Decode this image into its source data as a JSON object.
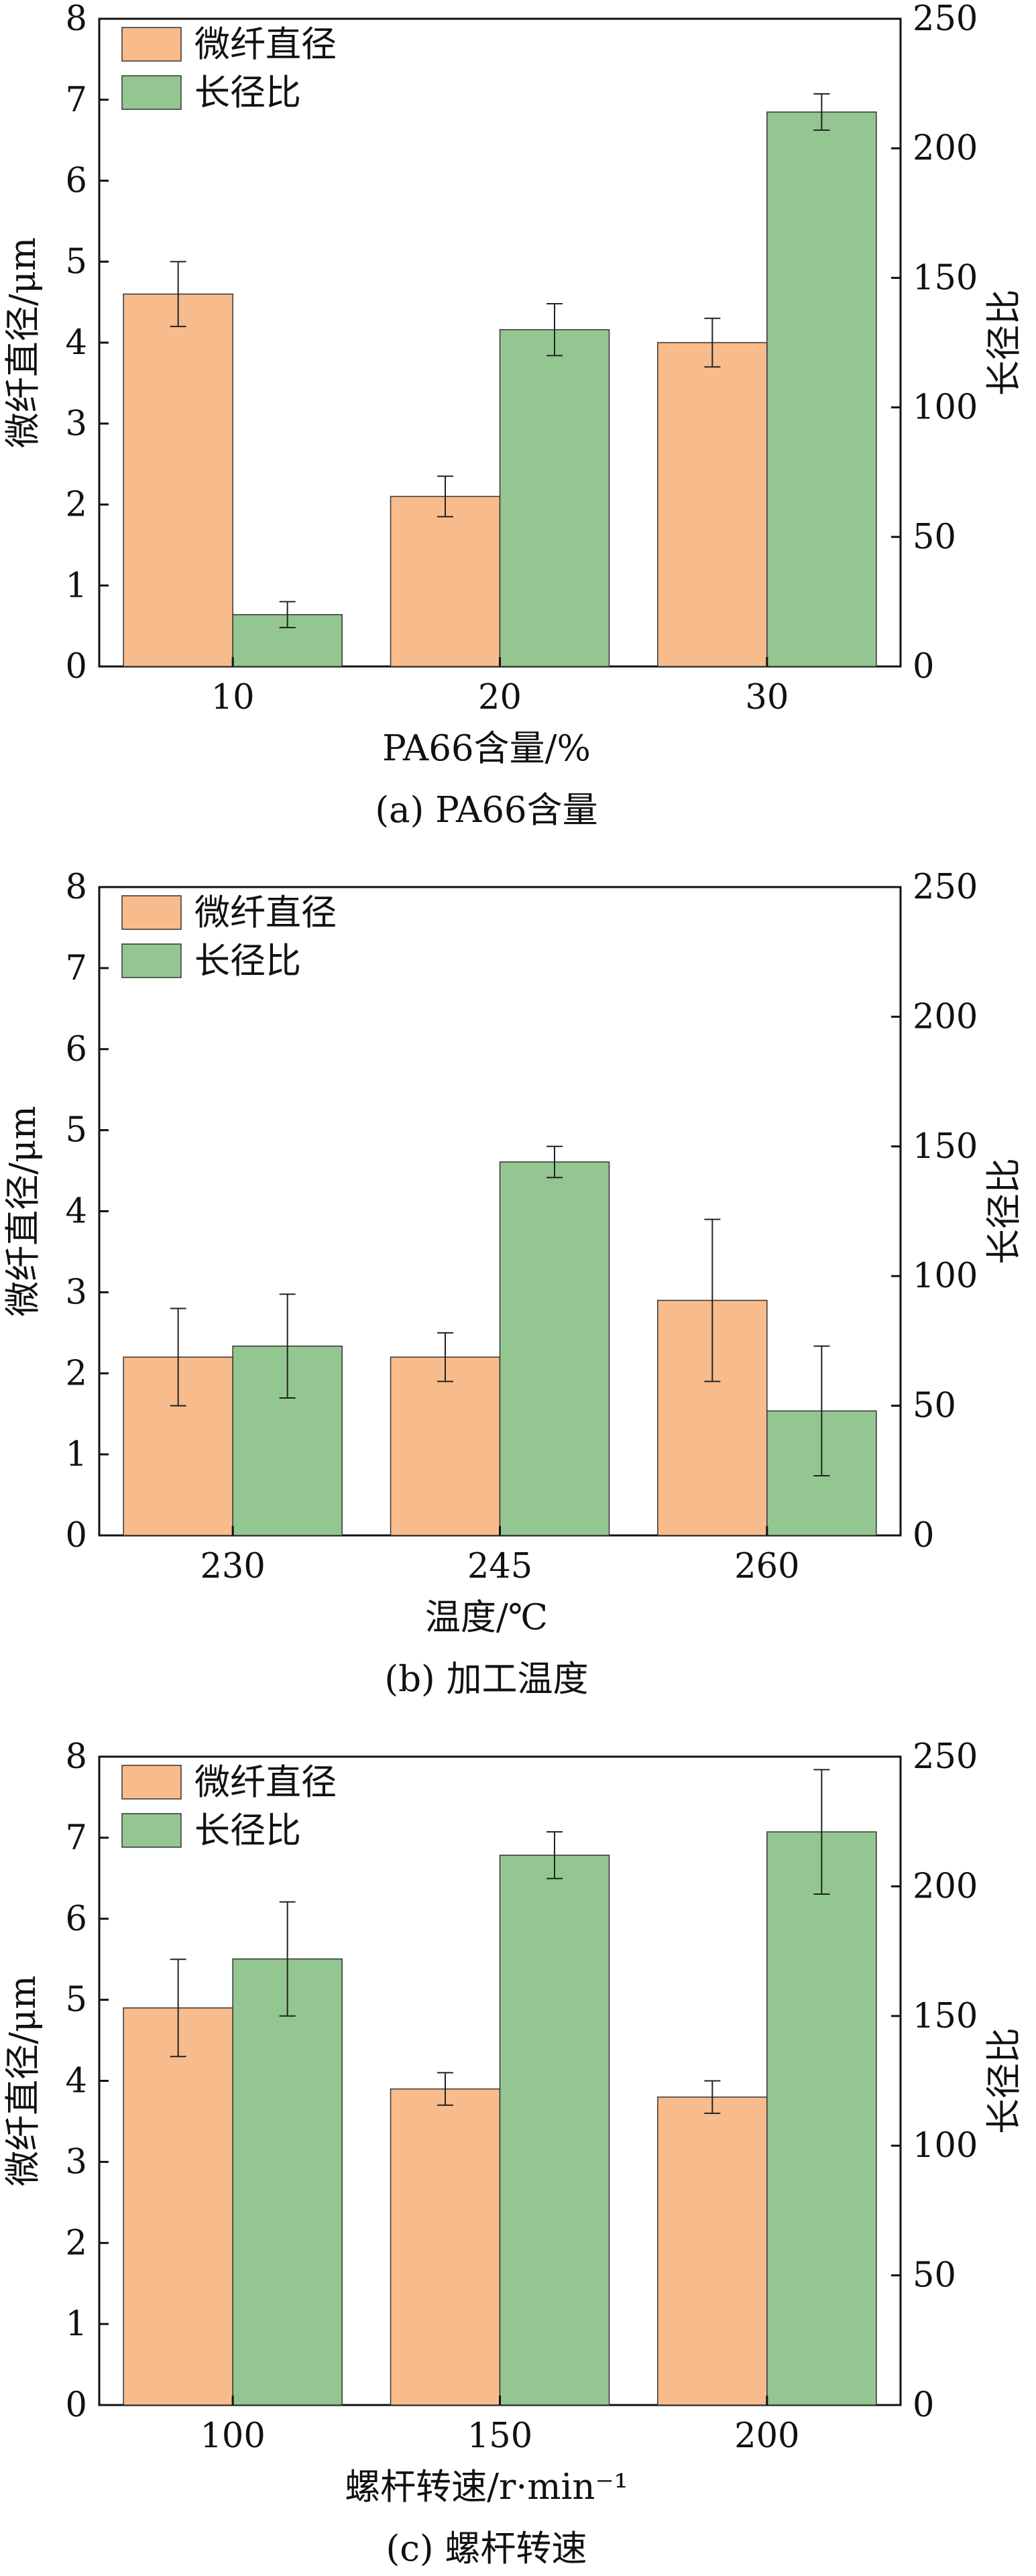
{
  "colors": {
    "series1": "#f8bc8c",
    "series2": "#93c690",
    "axis": "#111111",
    "error": "#222222"
  },
  "chart_data": [
    {
      "type": "bar",
      "caption": "(a) PA66含量",
      "xlabel": "PA66含量/%",
      "ylabel_left": "微纤直径/μm",
      "ylabel_right": "长径比",
      "categories": [
        "10",
        "20",
        "30"
      ],
      "ylim_left": [
        0,
        8
      ],
      "ylim_right": [
        0,
        250
      ],
      "yticks_left": [
        "0",
        "1",
        "2",
        "3",
        "4",
        "5",
        "6",
        "7",
        "8"
      ],
      "yticks_right": [
        "0",
        "50",
        "100",
        "150",
        "200",
        "250"
      ],
      "legend_position": "top-left",
      "series": [
        {
          "name": "微纤直径",
          "axis": "left",
          "values": [
            4.6,
            2.1,
            4.0
          ],
          "errors": [
            0.4,
            0.25,
            0.3
          ]
        },
        {
          "name": "长径比",
          "axis": "right",
          "values": [
            20,
            130,
            214
          ],
          "errors": [
            5,
            10,
            7
          ]
        }
      ]
    },
    {
      "type": "bar",
      "caption": "(b) 加工温度",
      "xlabel": "温度/℃",
      "ylabel_left": "微纤直径/μm",
      "ylabel_right": "长径比",
      "categories": [
        "230",
        "245",
        "260"
      ],
      "ylim_left": [
        0,
        8
      ],
      "ylim_right": [
        0,
        250
      ],
      "yticks_left": [
        "0",
        "1",
        "2",
        "3",
        "4",
        "5",
        "6",
        "7",
        "8"
      ],
      "yticks_right": [
        "0",
        "50",
        "100",
        "150",
        "200",
        "250"
      ],
      "legend_position": "top-left",
      "series": [
        {
          "name": "微纤直径",
          "axis": "left",
          "values": [
            2.2,
            2.2,
            2.9
          ],
          "errors": [
            0.6,
            0.3,
            1.0
          ]
        },
        {
          "name": "长径比",
          "axis": "right",
          "values": [
            73,
            144,
            48
          ],
          "errors": [
            20,
            6,
            25
          ]
        }
      ]
    },
    {
      "type": "bar",
      "caption": "(c) 螺杆转速",
      "xlabel": "螺杆转速/r·min⁻¹",
      "ylabel_left": "微纤直径/μm",
      "ylabel_right": "长径比",
      "categories": [
        "100",
        "150",
        "200"
      ],
      "ylim_left": [
        0,
        8
      ],
      "ylim_right": [
        0,
        250
      ],
      "yticks_left": [
        "0",
        "1",
        "2",
        "3",
        "4",
        "5",
        "6",
        "7",
        "8"
      ],
      "yticks_right": [
        "0",
        "50",
        "100",
        "150",
        "200",
        "250"
      ],
      "legend_position": "top-left",
      "series": [
        {
          "name": "微纤直径",
          "axis": "left",
          "values": [
            4.9,
            3.9,
            3.8
          ],
          "errors": [
            0.6,
            0.2,
            0.2
          ]
        },
        {
          "name": "长径比",
          "axis": "right",
          "values": [
            172,
            212,
            221
          ],
          "errors": [
            22,
            9,
            24
          ]
        }
      ]
    }
  ]
}
